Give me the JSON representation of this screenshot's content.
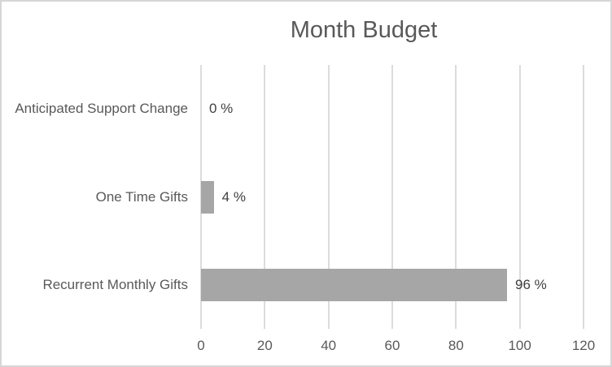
{
  "chart_data": {
    "type": "bar",
    "orientation": "horizontal",
    "title": "Month Budget",
    "categories": [
      "Anticipated Support Change",
      "One Time Gifts",
      "Recurrent Monthly Gifts"
    ],
    "values": [
      0,
      4,
      96
    ],
    "data_labels": [
      "0 %",
      "4 %",
      "96 %"
    ],
    "xlabel": "",
    "ylabel": "",
    "xlim": [
      0,
      120
    ],
    "x_ticks": [
      0,
      20,
      40,
      60,
      80,
      100,
      120
    ],
    "grid": true,
    "legend": false,
    "colors": {
      "bar": "#a6a6a6",
      "gridline": "#dcdcdc",
      "title": "#595959",
      "axis_labels": "#595959",
      "data_labels": "#404040",
      "frame_border": "#d6d6d6",
      "background": "#ffffff"
    }
  }
}
